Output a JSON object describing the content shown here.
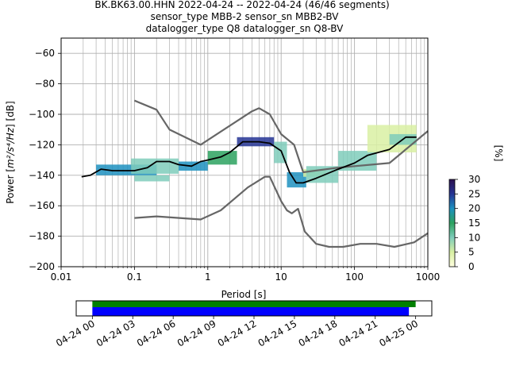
{
  "header": {
    "title_line1": "BK.BK63.00.HHN   2022-04-24 -- 2022-04-24  (46/46 segments)",
    "title_line2": "sensor_type MBB-2 sensor_sn MBB2-BV",
    "title_line3": "datalogger_type Q8 datalogger_sn Q8-BV"
  },
  "chart_data": [
    {
      "type": "heatmap",
      "title": "BK.BK63.00.HHN   2022-04-24 -- 2022-04-24  (46/46 segments)",
      "xlabel": "Period [s]",
      "ylabel_prefix": "Power [",
      "ylabel_unit": "m²/s⁴/Hz",
      "ylabel_suffix": "] [dB]",
      "x_scale": "log",
      "xlim": [
        0.01,
        1000
      ],
      "ylim": [
        -200,
        -50
      ],
      "x_ticks": [
        "0.01",
        "0.1",
        "1",
        "10",
        "100",
        "1000"
      ],
      "y_ticks": [
        "−60",
        "−80",
        "−100",
        "−120",
        "−140",
        "−160",
        "−180",
        "−200"
      ],
      "grid": true,
      "colorbar": {
        "label": "[%]",
        "range": [
          0,
          30
        ],
        "ticks": [
          "0",
          "5",
          "10",
          "15",
          "20",
          "25",
          "30"
        ],
        "colormap": [
          "#ffffe0",
          "#d9f0a3",
          "#7fcdbb",
          "#2ca25f",
          "#1d91c0",
          "#253494",
          "#2c1050"
        ]
      },
      "noise_model_color": "#666666",
      "mean_color": "#000000",
      "series": [
        {
          "name": "",
          "points": [
            [
              0.1,
              -91
            ],
            [
              0.2,
              -97
            ],
            [
              0.3,
              -110
            ],
            [
              0.8,
              -120
            ],
            [
              4,
              -98
            ],
            [
              5,
              -96
            ],
            [
              7,
              -100
            ],
            [
              10,
              -113
            ],
            [
              15,
              -120
            ],
            [
              20,
              -138
            ],
            [
              60,
              -135
            ],
            [
              300,
              -132
            ],
            [
              1000,
              -111
            ]
          ]
        },
        {
          "name": "",
          "points": [
            [
              0.1,
              -168
            ],
            [
              0.2,
              -167
            ],
            [
              0.8,
              -169
            ],
            [
              1.5,
              -163
            ],
            [
              3.5,
              -148
            ],
            [
              6,
              -141
            ],
            [
              7,
              -141
            ],
            [
              10,
              -157
            ],
            [
              12,
              -163
            ],
            [
              14,
              -165
            ],
            [
              17,
              -162
            ],
            [
              21,
              -177
            ],
            [
              30,
              -185
            ],
            [
              45,
              -187
            ],
            [
              70,
              -187
            ],
            [
              120,
              -185
            ],
            [
              200,
              -185
            ],
            [
              350,
              -187
            ],
            [
              650,
              -184
            ],
            [
              1000,
              -178
            ]
          ]
        },
        {
          "name": "",
          "points": [
            [
              0.019,
              -141
            ],
            [
              0.025,
              -140
            ],
            [
              0.035,
              -136
            ],
            [
              0.05,
              -137
            ],
            [
              0.1,
              -137
            ],
            [
              0.15,
              -135
            ],
            [
              0.2,
              -131
            ],
            [
              0.3,
              -131
            ],
            [
              0.4,
              -133
            ],
            [
              0.6,
              -134
            ],
            [
              0.8,
              -131
            ],
            [
              1,
              -130
            ],
            [
              1.5,
              -128
            ],
            [
              2,
              -125
            ],
            [
              3,
              -118
            ],
            [
              5,
              -118
            ],
            [
              7,
              -119
            ],
            [
              10,
              -124
            ],
            [
              13,
              -138
            ],
            [
              16,
              -145
            ],
            [
              20,
              -145
            ],
            [
              30,
              -142
            ],
            [
              60,
              -136
            ],
            [
              100,
              -132
            ],
            [
              150,
              -127
            ],
            [
              300,
              -123
            ],
            [
              500,
              -115
            ],
            [
              700,
              -115
            ]
          ]
        }
      ],
      "density": [
        {
          "x": [
            0.03,
            0.2
          ],
          "y": [
            -140,
            -133
          ],
          "pct": 20
        },
        {
          "x": [
            0.09,
            0.4
          ],
          "y": [
            -139,
            -129
          ],
          "pct": 8
        },
        {
          "x": [
            0.1,
            0.3
          ],
          "y": [
            -144,
            -140
          ],
          "pct": 10
        },
        {
          "x": [
            0.4,
            1.0
          ],
          "y": [
            -137,
            -131
          ],
          "pct": 18
        },
        {
          "x": [
            1.0,
            2.5
          ],
          "y": [
            -133,
            -124
          ],
          "pct": 15
        },
        {
          "x": [
            2.5,
            8.0
          ],
          "y": [
            -121,
            -115
          ],
          "pct": 25
        },
        {
          "x": [
            8.0,
            12.0
          ],
          "y": [
            -132,
            -118
          ],
          "pct": 12
        },
        {
          "x": [
            12.0,
            22.0
          ],
          "y": [
            -148,
            -138
          ],
          "pct": 18
        },
        {
          "x": [
            20.0,
            40.0
          ],
          "y": [
            -141,
            -136
          ],
          "pct": 3
        },
        {
          "x": [
            22.0,
            60.0
          ],
          "y": [
            -145,
            -134
          ],
          "pct": 10
        },
        {
          "x": [
            60.0,
            200.0
          ],
          "y": [
            -137,
            -124
          ],
          "pct": 12
        },
        {
          "x": [
            150.0,
            700.0
          ],
          "y": [
            -125,
            -107
          ],
          "pct": 3
        },
        {
          "x": [
            300.0,
            700.0
          ],
          "y": [
            -120,
            -113
          ],
          "pct": 10
        }
      ]
    },
    {
      "type": "bar",
      "title": "",
      "xlabel": "",
      "x_ticks": [
        "04-24 00",
        "04-24 03",
        "04-24 06",
        "04-24 09",
        "04-24 12",
        "04-24 15",
        "04-24 18",
        "04-24 21",
        "04-25 00"
      ],
      "xlim_hours": [
        -1.2,
        25.2
      ],
      "series": [
        {
          "name": "",
          "color": "#008000",
          "start_hour": 0,
          "end_hour": 24.0
        },
        {
          "name": "",
          "color": "#0000ff",
          "start_hour": 0,
          "end_hour": 23.5
        }
      ]
    }
  ]
}
